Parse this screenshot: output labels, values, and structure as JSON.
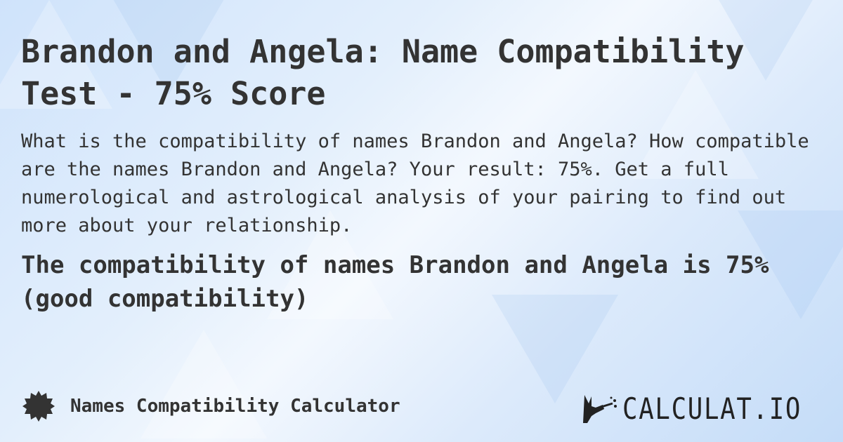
{
  "title": "Brandon and Angela: Name Compatibility Test - 75% Score",
  "description": "What is the compatibility of names Brandon and Angela? How compatible are the names Brandon and Angela? Your result: 75%. Get a full numerological and astrological analysis of your pairing to find out more about your relationship.",
  "result": "The compatibility of names Brandon and Angela is 75% (good compatibility)",
  "footer": {
    "calculator_name": "Names Compatibility Calculator",
    "calculator_icon": "badge-icon",
    "logo_text": "CALCULAT.IO"
  }
}
